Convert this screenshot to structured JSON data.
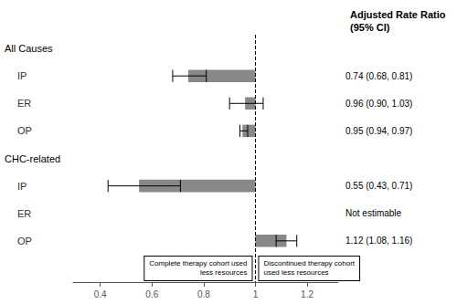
{
  "chart_data": {
    "type": "bar",
    "orientation": "horizontal",
    "color": "#888888",
    "sections": [
      {
        "title": "All Causes",
        "categories": [
          "IP",
          "ER",
          "OP"
        ],
        "values": [
          0.74,
          0.96,
          0.95
        ],
        "ci_lower": [
          0.68,
          0.9,
          0.94
        ],
        "ci_upper": [
          0.81,
          1.03,
          0.97
        ],
        "annotations": [
          "0.74 (0.68, 0.81)",
          "0.96 (0.90, 1.03)",
          "0.95 (0.94, 0.97)"
        ]
      },
      {
        "title": "CHC-related",
        "categories": [
          "IP",
          "ER",
          "OP"
        ],
        "values": [
          0.55,
          null,
          1.12
        ],
        "ci_lower": [
          0.43,
          null,
          1.08
        ],
        "ci_upper": [
          0.71,
          null,
          1.16
        ],
        "annotations": [
          "0.55 (0.43, 0.71)",
          "Not estimable",
          "1.12 (1.08, 1.16)"
        ]
      }
    ],
    "ref_line": 1,
    "annotations_title": "Adjusted Rate Ratio\n(95% CI)",
    "direction_labels": [
      "Complete therapy cohort used\nless resources",
      "Discontinued therapy cohort\nused less resources"
    ],
    "xlim": [
      0.295,
      1.32
    ],
    "xticks": [
      0.4,
      0.6,
      0.8,
      1,
      1.2
    ],
    "grid": false
  }
}
